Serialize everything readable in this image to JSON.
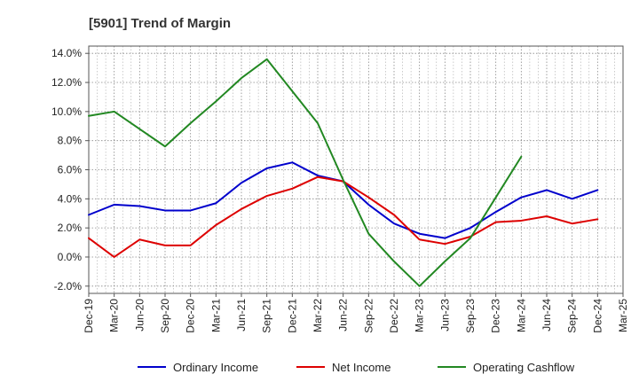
{
  "chart_data": {
    "type": "line",
    "title": "[5901]  Trend of Margin",
    "xlabel": "",
    "ylabel": "",
    "categories": [
      "Dec-19",
      "Mar-20",
      "Jun-20",
      "Sep-20",
      "Dec-20",
      "Mar-21",
      "Jun-21",
      "Sep-21",
      "Dec-21",
      "Mar-22",
      "Jun-22",
      "Sep-22",
      "Dec-22",
      "Mar-23",
      "Jun-23",
      "Sep-23",
      "Dec-23",
      "Mar-24",
      "Jun-24",
      "Sep-24",
      "Dec-24",
      "Mar-25"
    ],
    "ylim": [
      -2.5,
      14.5
    ],
    "yticks": [
      -2.0,
      0.0,
      2.0,
      4.0,
      6.0,
      8.0,
      10.0,
      12.0,
      14.0
    ],
    "ytick_labels": [
      "-2.0%",
      "0.0%",
      "2.0%",
      "4.0%",
      "6.0%",
      "8.0%",
      "10.0%",
      "12.0%",
      "14.0%"
    ],
    "grid": true,
    "legend_position": "bottom",
    "series": [
      {
        "name": "Ordinary Income",
        "color": "#0000cc",
        "values": [
          2.9,
          3.6,
          3.5,
          3.2,
          3.2,
          3.7,
          5.1,
          6.1,
          6.5,
          5.6,
          5.2,
          3.6,
          2.3,
          1.6,
          1.3,
          2.0,
          3.1,
          4.1,
          4.6,
          4.0,
          4.6,
          null
        ]
      },
      {
        "name": "Net Income",
        "color": "#dd0000",
        "values": [
          1.3,
          0.0,
          1.2,
          0.8,
          0.8,
          2.2,
          3.3,
          4.2,
          4.7,
          5.5,
          5.2,
          4.1,
          2.9,
          1.2,
          0.9,
          1.4,
          2.4,
          2.5,
          2.8,
          2.3,
          2.6,
          null
        ]
      },
      {
        "name": "Operating Cashflow",
        "color": "#228822",
        "values": [
          9.7,
          10.0,
          8.8,
          7.6,
          9.2,
          10.7,
          12.3,
          13.6,
          11.4,
          9.2,
          5.3,
          1.6,
          -0.3,
          -2.0,
          -0.3,
          1.3,
          4.1,
          6.9,
          null,
          null,
          null,
          null
        ]
      }
    ]
  }
}
